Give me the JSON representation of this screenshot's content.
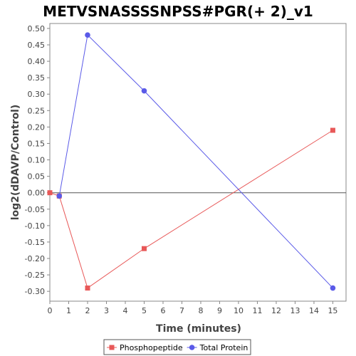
{
  "chart_data": {
    "type": "line",
    "title": "METVSNASSSSNPSS#PGR(+ 2)_v1",
    "xlabel": "Time (minutes)",
    "ylabel": "log2(dDAVP/Control)",
    "xlim": [
      0,
      15.7
    ],
    "ylim": [
      -0.33,
      0.515
    ],
    "xticks": [
      0,
      1,
      2,
      3,
      4,
      5,
      6,
      7,
      8,
      9,
      10,
      11,
      12,
      13,
      14,
      15
    ],
    "yticks": [
      -0.3,
      -0.25,
      -0.2,
      -0.15,
      -0.1,
      -0.05,
      0.0,
      0.05,
      0.1,
      0.15,
      0.2,
      0.25,
      0.3,
      0.35,
      0.4,
      0.45,
      0.5
    ],
    "ytick_labels": [
      "-0.30",
      "-0.25",
      "-0.20",
      "-0.15",
      "-0.10",
      "-0.05",
      "0.00",
      "0.05",
      "0.10",
      "0.15",
      "0.20",
      "0.25",
      "0.30",
      "0.35",
      "0.40",
      "0.45",
      "0.50"
    ],
    "zero_line": true,
    "grid": false,
    "legend_position": "bottom",
    "series": [
      {
        "name": "Phosphopeptide",
        "marker": "square",
        "color": "#e85858",
        "x": [
          0,
          0.5,
          2,
          5,
          15
        ],
        "y": [
          0.0,
          -0.01,
          -0.29,
          -0.17,
          0.19
        ]
      },
      {
        "name": "Total Protein",
        "marker": "circle",
        "color": "#5a5ae8",
        "x": [
          0.5,
          2,
          5,
          15
        ],
        "y": [
          -0.01,
          0.48,
          0.31,
          -0.29
        ]
      }
    ]
  }
}
